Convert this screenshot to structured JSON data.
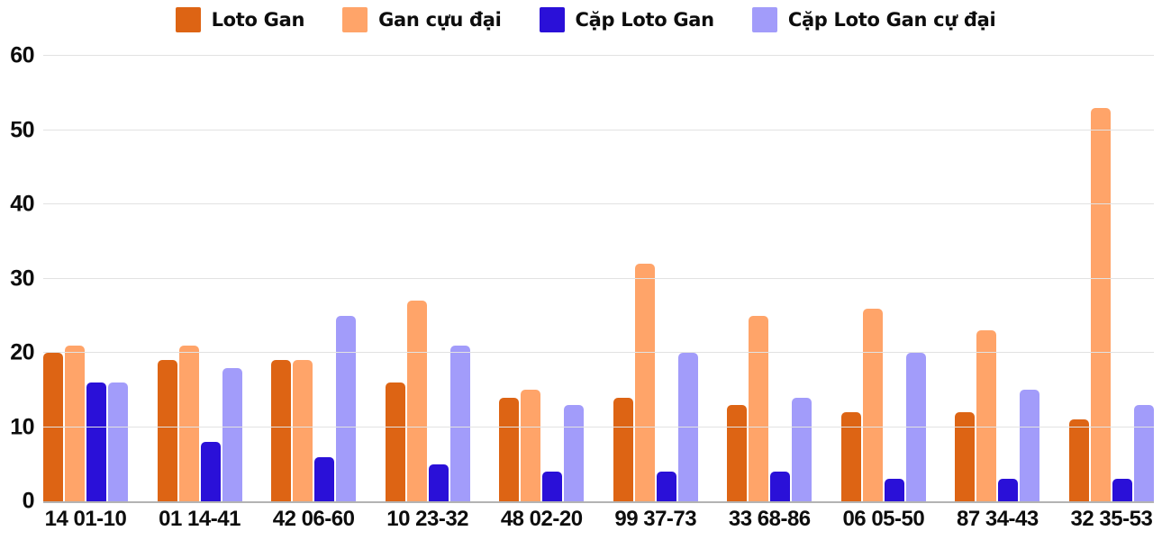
{
  "chart_data": {
    "type": "bar",
    "title": "",
    "xlabel": "",
    "ylabel": "",
    "categories": [
      "14 01-10",
      "01 14-41",
      "42 06-60",
      "10 23-32",
      "48 02-20",
      "99 37-73",
      "33 68-86",
      "06 05-50",
      "87 34-43",
      "32 35-53"
    ],
    "series": [
      {
        "name": "Loto Gan",
        "color": "#dd6414",
        "values": [
          20,
          19,
          19,
          16,
          14,
          14,
          13,
          12,
          12,
          11
        ]
      },
      {
        "name": "Gan cựu đại",
        "color": "#ffa469",
        "values": [
          21,
          21,
          19,
          27,
          15,
          32,
          25,
          26,
          23,
          53
        ]
      },
      {
        "name": "Cặp Loto Gan",
        "color": "#2a10d8",
        "values": [
          16,
          8,
          6,
          5,
          4,
          4,
          4,
          3,
          3,
          3
        ]
      },
      {
        "name": "Cặp Loto Gan cự đại",
        "color": "#a29cfa",
        "values": [
          16,
          18,
          25,
          21,
          13,
          20,
          14,
          20,
          15,
          13
        ]
      }
    ],
    "ylim": [
      0,
      60
    ],
    "yticks": [
      0,
      10,
      20,
      30,
      40,
      50,
      60
    ],
    "grid": "horizontal",
    "legend_position": "top",
    "colors": {
      "background": "#ffffff",
      "gridline": "#e2e2e2",
      "axis_line": "#b3b3b3",
      "label_text": "#0d0d0d"
    }
  }
}
